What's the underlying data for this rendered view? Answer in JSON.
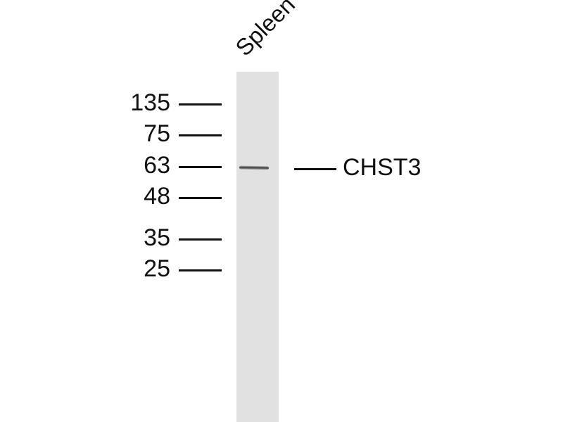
{
  "lane": {
    "label": "Spleen"
  },
  "markers": [
    {
      "kda": "135"
    },
    {
      "kda": "75"
    },
    {
      "kda": "63"
    },
    {
      "kda": "48"
    },
    {
      "kda": "35"
    },
    {
      "kda": "25"
    }
  ],
  "target": {
    "label": "CHST3"
  },
  "colors": {
    "lane": "#e1e1e1",
    "band": "#333333",
    "text": "#111111"
  }
}
